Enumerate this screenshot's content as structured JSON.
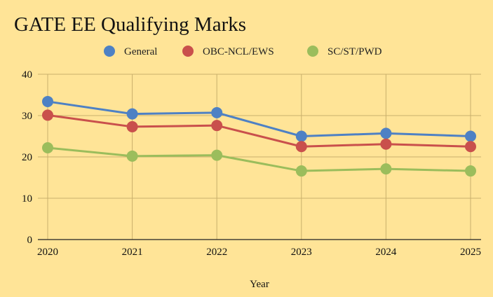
{
  "chart_data": {
    "type": "line",
    "title": "GATE EE Qualifying Marks",
    "xlabel": "Year",
    "ylabel": "",
    "x": [
      "2020",
      "2021",
      "2022",
      "2023",
      "2024",
      "2025"
    ],
    "ylim": [
      0,
      40
    ],
    "yticks": [
      0,
      10,
      20,
      30,
      40
    ],
    "grid": true,
    "legend_position": "top",
    "series": [
      {
        "name": "General",
        "color": "#4e81c4",
        "values": [
          33.4,
          30.4,
          30.7,
          25.0,
          25.7,
          25.0
        ]
      },
      {
        "name": "OBC-NCL/EWS",
        "color": "#c9504c",
        "values": [
          30.1,
          27.3,
          27.6,
          22.5,
          23.1,
          22.5
        ]
      },
      {
        "name": "SC/ST/PWD",
        "color": "#9bbd5c",
        "values": [
          22.2,
          20.2,
          20.4,
          16.6,
          17.1,
          16.6
        ]
      }
    ]
  }
}
